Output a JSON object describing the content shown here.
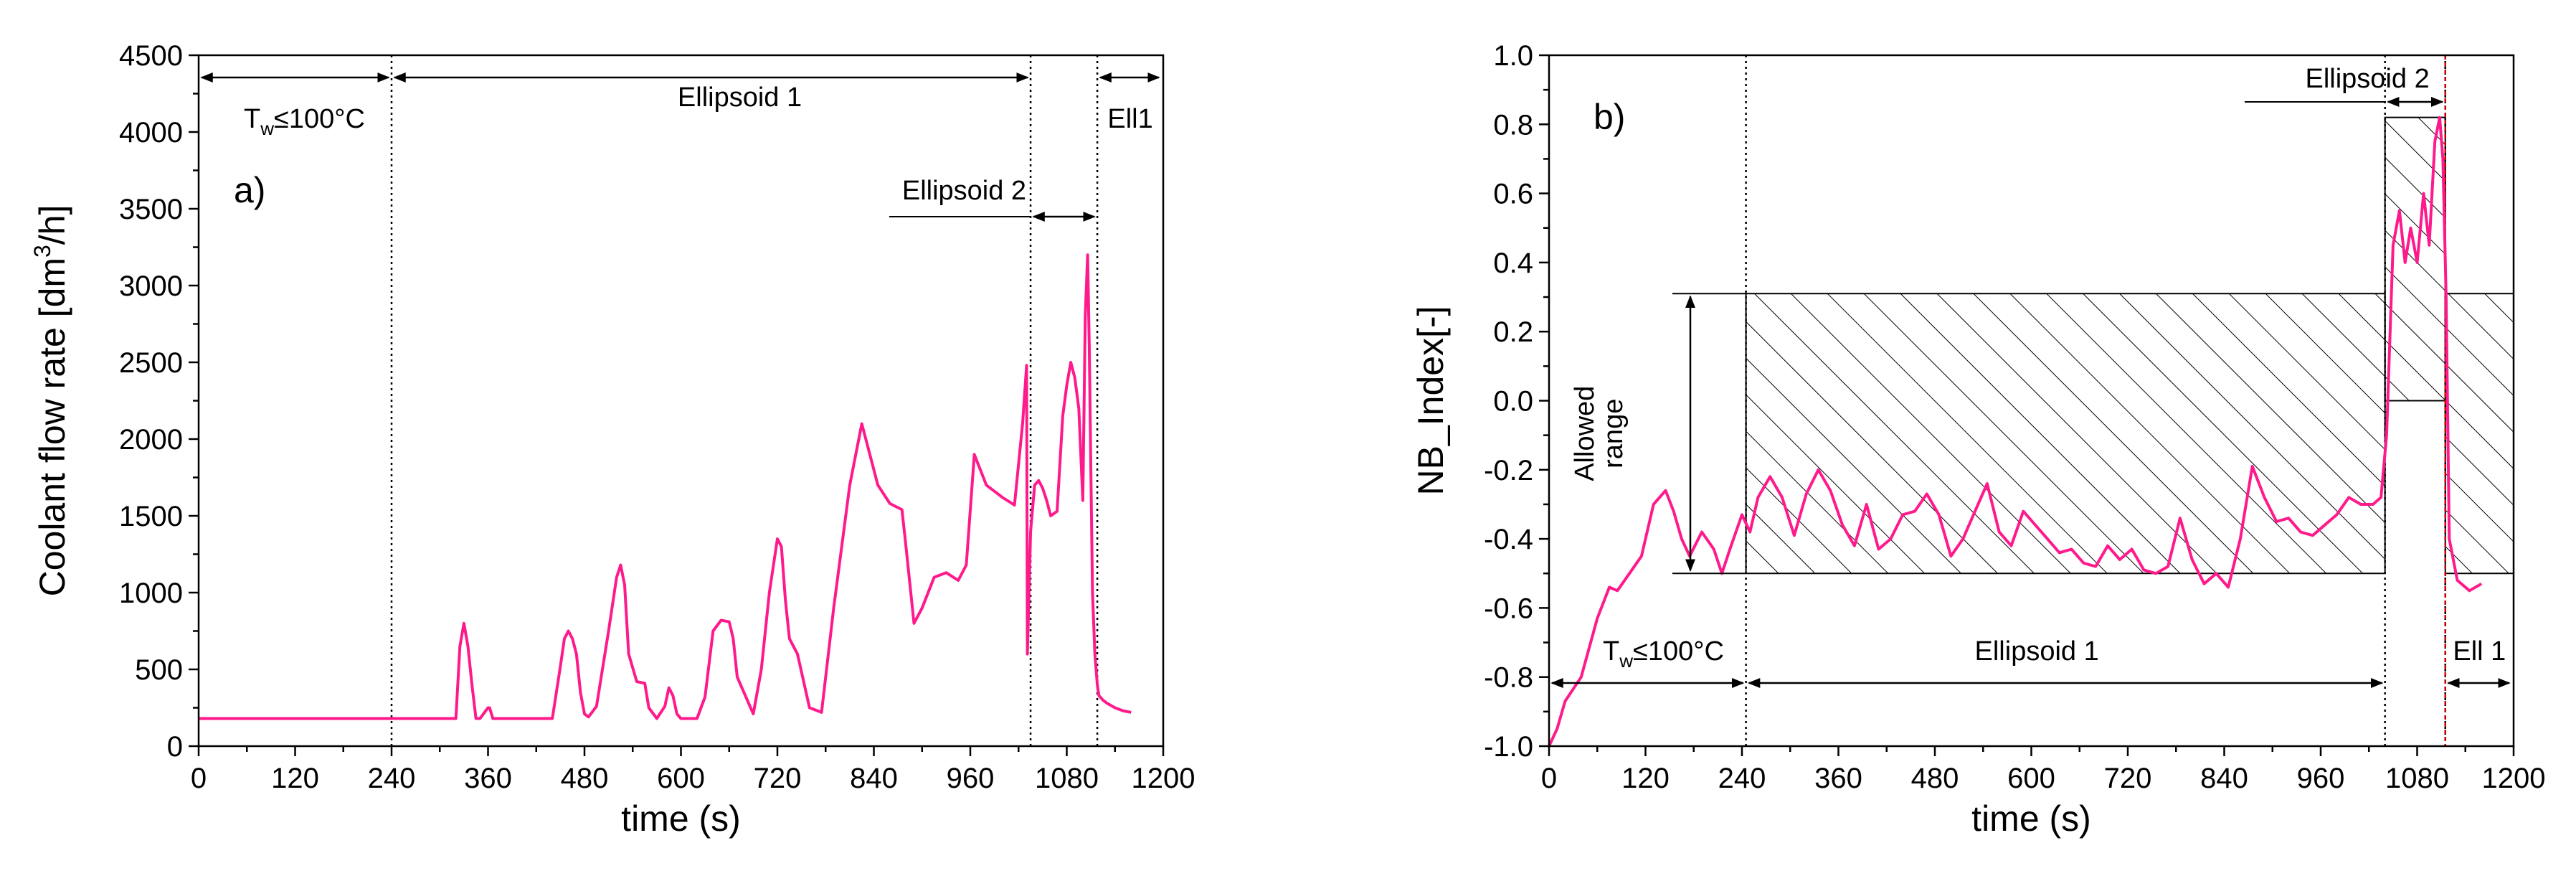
{
  "chart_data": [
    {
      "id": "a",
      "type": "line",
      "panel_label": "a)",
      "xlabel": "time (s)",
      "ylabel": "Coolant flow rate [dm³/h]",
      "ylabel_parts": [
        "Coolant flow rate [dm",
        "3",
        "/h]"
      ],
      "xlim": [
        0,
        1200
      ],
      "ylim": [
        0,
        4500
      ],
      "xticks": [
        0,
        120,
        240,
        360,
        480,
        600,
        720,
        840,
        960,
        1080,
        1200
      ],
      "yticks": [
        0,
        500,
        1000,
        1500,
        2000,
        2500,
        3000,
        3500,
        4000,
        4500
      ],
      "color": "#ff1a8c",
      "series": [
        {
          "name": "Coolant flow rate",
          "x": [
            0,
            240,
            320,
            325,
            330,
            335,
            340,
            345,
            350,
            360,
            362,
            366,
            370,
            440,
            450,
            455,
            460,
            465,
            470,
            475,
            480,
            485,
            495,
            510,
            520,
            525,
            530,
            535,
            545,
            555,
            560,
            570,
            580,
            585,
            590,
            595,
            600,
            620,
            630,
            640,
            650,
            660,
            665,
            670,
            690,
            700,
            710,
            720,
            725,
            730,
            735,
            745,
            760,
            775,
            790,
            810,
            825,
            835,
            845,
            860,
            875,
            880,
            890,
            900,
            915,
            930,
            945,
            955,
            965,
            980,
            1000,
            1015,
            1025,
            1030,
            1031,
            1035,
            1040,
            1045,
            1050,
            1055,
            1060,
            1068,
            1075,
            1080,
            1085,
            1090,
            1095,
            1100,
            1103,
            1106,
            1108,
            1110,
            1112,
            1115,
            1118,
            1120,
            1125,
            1130,
            1140,
            1150,
            1160
          ],
          "y": [
            180,
            180,
            180,
            650,
            800,
            650,
            400,
            180,
            180,
            250,
            250,
            180,
            180,
            180,
            520,
            700,
            750,
            700,
            600,
            350,
            210,
            190,
            260,
            750,
            1100,
            1180,
            1050,
            600,
            420,
            410,
            250,
            180,
            260,
            380,
            330,
            210,
            180,
            180,
            320,
            750,
            820,
            810,
            700,
            450,
            210,
            500,
            1000,
            1350,
            1300,
            950,
            700,
            600,
            250,
            220,
            900,
            1700,
            2100,
            1900,
            1700,
            1580,
            1540,
            1300,
            800,
            900,
            1100,
            1130,
            1080,
            1180,
            1900,
            1700,
            1620,
            1570,
            2100,
            2480,
            600,
            1400,
            1700,
            1730,
            1680,
            1600,
            1500,
            1530,
            2150,
            2350,
            2500,
            2400,
            2200,
            1600,
            2800,
            3200,
            2600,
            1800,
            1000,
            600,
            400,
            330,
            300,
            280,
            250,
            230,
            220
          ]
        }
      ],
      "vlines": [
        240,
        1035,
        1118
      ],
      "annotations": {
        "tw_prefix": "T",
        "tw_sub": "w",
        "tw_suffix": "≤100°C",
        "ellipsoid1": "Ellipsoid 1",
        "ellipsoid2": "Ellipsoid 2",
        "ell1_short": "Ell1"
      }
    },
    {
      "id": "b",
      "type": "line",
      "panel_label": "b)",
      "xlabel": "time (s)",
      "ylabel": "NB_Index[-]",
      "xlim": [
        0,
        1200
      ],
      "ylim": [
        -1.0,
        1.0
      ],
      "xticks": [
        0,
        120,
        240,
        360,
        480,
        600,
        720,
        840,
        960,
        1080,
        1200
      ],
      "yticks": [
        -1.0,
        -0.8,
        -0.6,
        -0.4,
        -0.2,
        0.0,
        0.2,
        0.4,
        0.6,
        0.8,
        1.0
      ],
      "ytick_labels": [
        "-1.0",
        "-0.8",
        "-0.6",
        "-0.4",
        "-0.2",
        "0.0",
        "0.2",
        "0.4",
        "0.6",
        "0.8",
        "1.0"
      ],
      "color": "#ff1a8c",
      "series": [
        {
          "name": "NB_Index",
          "x": [
            0,
            10,
            20,
            40,
            60,
            75,
            85,
            100,
            115,
            130,
            145,
            155,
            165,
            175,
            190,
            205,
            215,
            225,
            240,
            250,
            260,
            275,
            290,
            305,
            320,
            335,
            350,
            365,
            380,
            395,
            410,
            425,
            440,
            455,
            470,
            485,
            500,
            515,
            530,
            545,
            560,
            575,
            590,
            605,
            620,
            635,
            650,
            665,
            680,
            695,
            710,
            725,
            740,
            755,
            770,
            785,
            800,
            815,
            830,
            845,
            860,
            875,
            890,
            905,
            920,
            935,
            950,
            965,
            980,
            995,
            1010,
            1025,
            1035,
            1042,
            1050,
            1058,
            1065,
            1072,
            1080,
            1088,
            1095,
            1102,
            1108,
            1112,
            1116,
            1120,
            1130,
            1145,
            1160
          ],
          "y": [
            -1.0,
            -0.95,
            -0.87,
            -0.8,
            -0.63,
            -0.54,
            -0.55,
            -0.5,
            -0.45,
            -0.3,
            -0.26,
            -0.32,
            -0.4,
            -0.45,
            -0.38,
            -0.43,
            -0.5,
            -0.43,
            -0.33,
            -0.38,
            -0.28,
            -0.22,
            -0.28,
            -0.39,
            -0.27,
            -0.2,
            -0.26,
            -0.36,
            -0.42,
            -0.3,
            -0.43,
            -0.4,
            -0.33,
            -0.32,
            -0.27,
            -0.33,
            -0.45,
            -0.4,
            -0.32,
            -0.24,
            -0.38,
            -0.42,
            -0.32,
            -0.36,
            -0.4,
            -0.44,
            -0.43,
            -0.47,
            -0.48,
            -0.42,
            -0.46,
            -0.43,
            -0.49,
            -0.5,
            -0.48,
            -0.34,
            -0.46,
            -0.53,
            -0.5,
            -0.54,
            -0.4,
            -0.19,
            -0.28,
            -0.35,
            -0.34,
            -0.38,
            -0.39,
            -0.36,
            -0.33,
            -0.28,
            -0.3,
            -0.3,
            -0.28,
            -0.1,
            0.45,
            0.55,
            0.4,
            0.5,
            0.4,
            0.6,
            0.45,
            0.75,
            0.82,
            0.7,
            0.3,
            -0.4,
            -0.52,
            -0.55,
            -0.53
          ]
        }
      ],
      "allowed_range": [
        -0.5,
        0.31
      ],
      "hatch_regions": [
        {
          "x": [
            245,
            1040
          ],
          "y": [
            -0.5,
            0.31
          ]
        },
        {
          "x": [
            1040,
            1115
          ],
          "y": [
            0.0,
            0.82
          ]
        },
        {
          "x": [
            1115,
            1200
          ],
          "y": [
            -0.5,
            0.31
          ]
        }
      ],
      "vlines": [
        245,
        1040,
        1115
      ],
      "annotations": {
        "allowed_line1": "Allowed",
        "allowed_line2": "range",
        "tw_prefix": "T",
        "tw_sub": "w",
        "tw_suffix": "≤100°C",
        "ellipsoid1": "Ellipsoid 1",
        "ellipsoid2": "Ellipsoid 2",
        "ell1_short": "Ell 1"
      }
    }
  ]
}
